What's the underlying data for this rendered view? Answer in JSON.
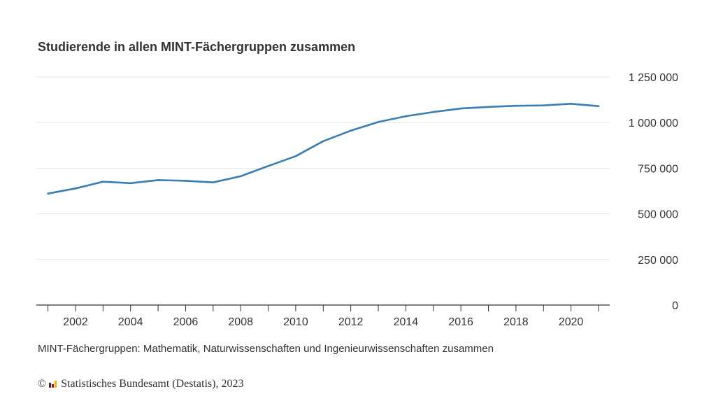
{
  "chart_data": {
    "type": "line",
    "title": "Studierende in allen MINT-Fächergruppen zusammen",
    "xlabel": "",
    "ylabel": "",
    "x": [
      2001,
      2002,
      2003,
      2004,
      2005,
      2006,
      2007,
      2008,
      2009,
      2010,
      2011,
      2012,
      2013,
      2014,
      2015,
      2016,
      2017,
      2018,
      2019,
      2020,
      2021
    ],
    "series": [
      {
        "values": [
          611000,
          639000,
          676000,
          668000,
          685000,
          681000,
          672000,
          706000,
          762000,
          816000,
          898000,
          956000,
          1003000,
          1035000,
          1058000,
          1077000,
          1086000,
          1092000,
          1094000,
          1103000,
          1090000
        ]
      }
    ],
    "xlim": [
      2001,
      2021
    ],
    "ylim": [
      0,
      1250000
    ],
    "xticks": [
      "2002",
      "2004",
      "2006",
      "2008",
      "2010",
      "2012",
      "2014",
      "2016",
      "2018",
      "2020"
    ],
    "yticks": [
      {
        "value": 0,
        "label": "0"
      },
      {
        "value": 250000,
        "label": "250 000"
      },
      {
        "value": 500000,
        "label": "500 000"
      },
      {
        "value": 750000,
        "label": "750 000"
      },
      {
        "value": 1000000,
        "label": "1 000 000"
      },
      {
        "value": 1250000,
        "label": "1 250 000"
      }
    ],
    "grid": true,
    "y_axis_side": "right",
    "line_color": "#3a7db3"
  },
  "note": "MINT-Fächergruppen: Mathematik, Naturwissenschaften und Ingenieurwissenschaften zusammen",
  "source": {
    "copyright": "©",
    "text": "Statistisches Bundesamt (Destatis), 2023",
    "logo_colors": [
      "#333333",
      "#d0021b",
      "#f0b400"
    ]
  }
}
